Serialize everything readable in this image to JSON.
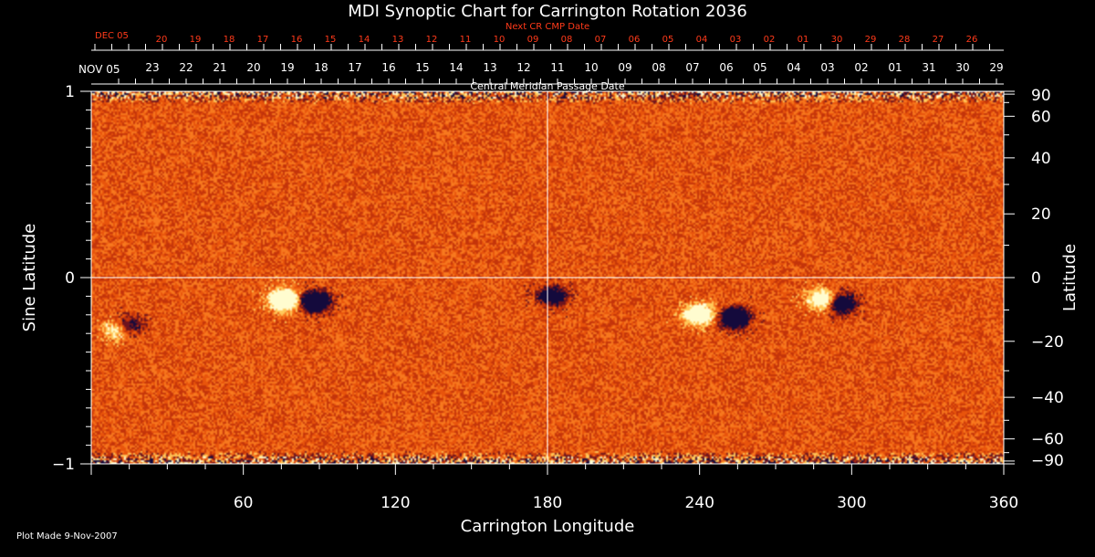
{
  "chart_data": {
    "type": "heatmap",
    "title": "MDI Synoptic Chart for Carrington Rotation 2036",
    "xlabel": "Carrington Longitude",
    "ylabel_left": "Sine Latitude",
    "ylabel_right": "Latitude",
    "xlim": [
      0,
      360
    ],
    "ylim": [
      -1,
      1
    ],
    "x_ticks": [
      60,
      120,
      180,
      240,
      300,
      360
    ],
    "x_tick_labels": [
      "60",
      "120",
      "180",
      "240",
      "300",
      "360"
    ],
    "y_left_ticks": [
      -1,
      0,
      1
    ],
    "y_left_tick_labels": [
      "−1",
      "0",
      "1"
    ],
    "y_right_ticks_deg": [
      90,
      60,
      40,
      20,
      0,
      -20,
      -40,
      -60,
      -90
    ],
    "y_right_tick_labels": [
      "90",
      "60",
      "40",
      "20",
      "0",
      "−20",
      "−40",
      "−60",
      "−90"
    ],
    "grid": {
      "vertical_line_at_lon": 180,
      "horizontal_line_at_sinlat": 0
    },
    "colors": {
      "background": "#000000",
      "field": "#e8540c",
      "positive": "#fffccf",
      "negative": "#140a3c",
      "grid": "#ffffff",
      "top_axis": "#ff3a1a"
    },
    "top_axis_1": {
      "label": "Next CR CMP Date",
      "start_label": "DEC 05",
      "labels": [
        "20",
        "19",
        "18",
        "17",
        "16",
        "15",
        "14",
        "13",
        "12",
        "11",
        "10",
        "09",
        "08",
        "07",
        "06",
        "05",
        "04",
        "03",
        "02",
        "01",
        "30",
        "29",
        "28",
        "27",
        "26"
      ]
    },
    "top_axis_2": {
      "label": "Central Meridian Passage Date",
      "start_label": "NOV 05",
      "labels": [
        "23",
        "22",
        "21",
        "20",
        "19",
        "18",
        "17",
        "16",
        "15",
        "14",
        "13",
        "12",
        "11",
        "10",
        "09",
        "08",
        "07",
        "06",
        "05",
        "04",
        "03",
        "02",
        "01",
        "31",
        "30",
        "29"
      ]
    },
    "active_regions": [
      {
        "lon": 76,
        "sinlat": -0.12,
        "polarity": "positive",
        "strength": 1.0
      },
      {
        "lon": 88,
        "sinlat": -0.13,
        "polarity": "negative",
        "strength": 1.0
      },
      {
        "lon": 240,
        "sinlat": -0.2,
        "polarity": "positive",
        "strength": 0.8
      },
      {
        "lon": 254,
        "sinlat": -0.22,
        "polarity": "negative",
        "strength": 0.9
      },
      {
        "lon": 289,
        "sinlat": -0.12,
        "polarity": "positive",
        "strength": 0.7
      },
      {
        "lon": 296,
        "sinlat": -0.14,
        "polarity": "negative",
        "strength": 0.8
      },
      {
        "lon": 10,
        "sinlat": -0.28,
        "polarity": "positive",
        "strength": 0.5
      },
      {
        "lon": 14,
        "sinlat": -0.26,
        "polarity": "negative",
        "strength": 0.5
      },
      {
        "lon": 182,
        "sinlat": -0.1,
        "polarity": "negative",
        "strength": 0.6
      }
    ]
  },
  "footer": {
    "plot_made": "Plot Made  9-Nov-2007"
  }
}
